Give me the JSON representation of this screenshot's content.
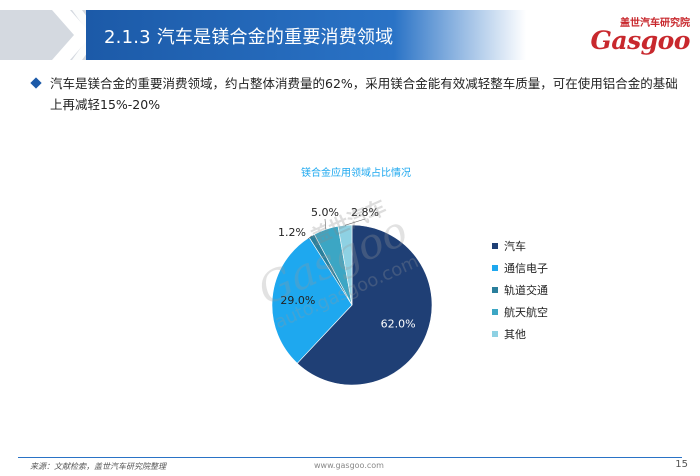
{
  "header": {
    "title": "2.1.3 汽车是镁合金的重要消费领域"
  },
  "logo": {
    "cn": "盖世汽车研究院",
    "en": "Gasgoo"
  },
  "bullet": {
    "text": "汽车是镁合金的重要消费领域，约占整体消费量的62%，采用镁合金能有效减轻整车质量，可在使用铝合金的基础上再减轻15%-20%"
  },
  "chart_data": {
    "type": "pie",
    "title": "镁合金应用领域占比情况",
    "categories": [
      "汽车",
      "通信电子",
      "轨道交通",
      "航天航空",
      "其他"
    ],
    "values": [
      62.0,
      29.0,
      1.2,
      5.0,
      2.8
    ],
    "labels": [
      "62.0%",
      "29.0%",
      "1.2%",
      "5.0%",
      "2.8%"
    ],
    "colors": [
      "#1f3f75",
      "#1ea8ef",
      "#2a7f9c",
      "#3ca6c4",
      "#8ed1e3"
    ],
    "legend_position": "right"
  },
  "watermark": {
    "line1": "盖世汽车",
    "line2": "Gasgoo",
    "line3": "auto.gasgoo.com"
  },
  "footer": {
    "source": "来源：文献检索，盖世汽车研究院整理",
    "url": "www.gasgoo.com",
    "page": "15"
  }
}
